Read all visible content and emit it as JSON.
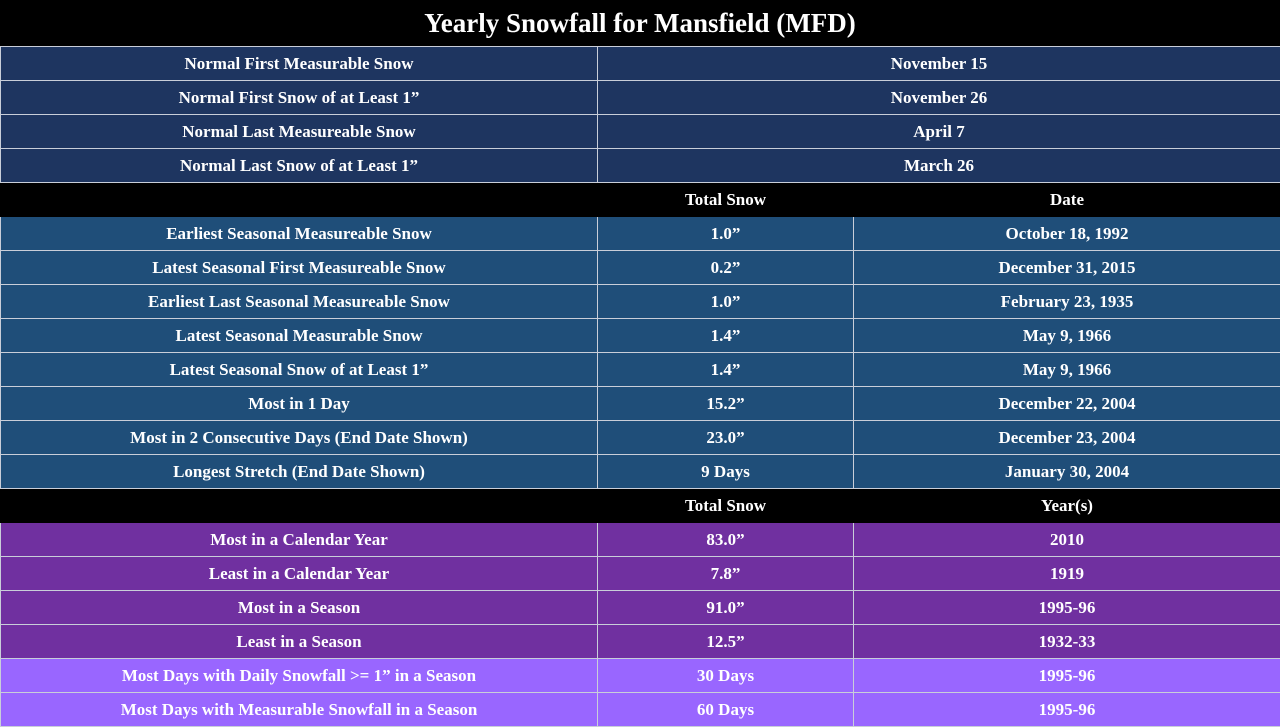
{
  "title": "Yearly Snowfall for Mansfield (MFD)",
  "normals": [
    {
      "label": "Normal First Measurable Snow",
      "value": "November 15"
    },
    {
      "label": "Normal First Snow of at Least 1”",
      "value": "November 26"
    },
    {
      "label": "Normal Last Measureable Snow",
      "value": "April  7"
    },
    {
      "label": "Normal Last Snow of at Least 1”",
      "value": "March 26"
    }
  ],
  "header1": {
    "col2": "Total Snow",
    "col3": "Date"
  },
  "records": [
    {
      "label": "Earliest Seasonal Measureable Snow",
      "total": "1.0”",
      "date": "October 18, 1992"
    },
    {
      "label": "Latest Seasonal First Measureable Snow",
      "total": "0.2”",
      "date": "December 31, 2015"
    },
    {
      "label": "Earliest Last Seasonal Measureable Snow",
      "total": "1.0”",
      "date": "February 23, 1935"
    },
    {
      "label": "Latest Seasonal Measurable Snow",
      "total": "1.4”",
      "date": "May 9, 1966"
    },
    {
      "label": "Latest Seasonal Snow of at Least 1”",
      "total": "1.4”",
      "date": "May 9, 1966"
    },
    {
      "label": "Most in 1 Day",
      "total": "15.2”",
      "date": "December 22, 2004"
    },
    {
      "label": "Most in 2 Consecutive Days (End Date Shown)",
      "total": "23.0”",
      "date": "December 23, 2004"
    },
    {
      "label": "Longest Stretch (End Date Shown)",
      "total": "9 Days",
      "date": "January 30, 2004"
    }
  ],
  "header2": {
    "col2": "Total Snow",
    "col3": "Year(s)"
  },
  "annual": [
    {
      "label": "Most in a Calendar Year",
      "total": "83.0”",
      "year": "2010"
    },
    {
      "label": "Least in a Calendar Year",
      "total": "7.8”",
      "year": "1919"
    },
    {
      "label": "Most in a Season",
      "total": "91.0”",
      "year": "1995-96"
    },
    {
      "label": "Least in a Season",
      "total": "12.5”",
      "year": "1932-33"
    }
  ],
  "days": [
    {
      "label": "Most Days with Daily Snowfall >= 1” in a Season",
      "total": "30 Days",
      "year": "1995-96"
    },
    {
      "label": "Most Days with Measurable Snowfall in a Season",
      "total": "60 Days",
      "year": "1995-96"
    }
  ]
}
